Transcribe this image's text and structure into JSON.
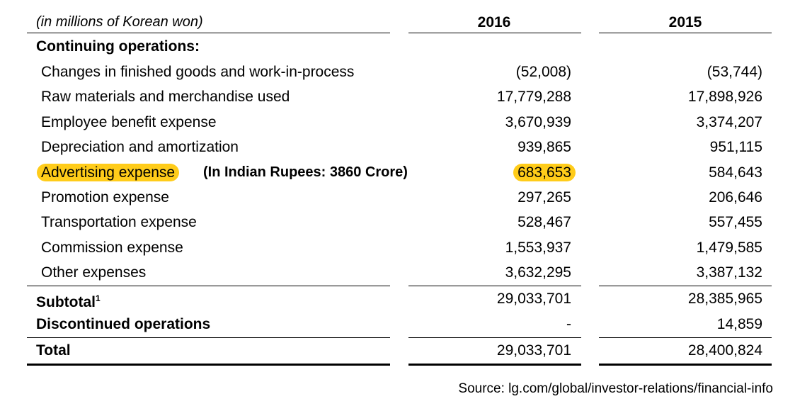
{
  "header": {
    "units": "(in millions of Korean won)",
    "col_2016": "2016",
    "col_2015": "2015"
  },
  "section_title": "Continuing operations:",
  "rows": [
    {
      "label": "Changes in finished goods and work-in-process",
      "v2016": "(52,008)",
      "v2015": "(53,744)"
    },
    {
      "label": "Raw materials and merchandise used",
      "v2016": "17,779,288",
      "v2015": "17,898,926"
    },
    {
      "label": "Employee benefit expense",
      "v2016": "3,670,939",
      "v2015": "3,374,207"
    },
    {
      "label": "Depreciation and amortization",
      "v2016": "939,865",
      "v2015": "951,115"
    },
    {
      "label": "Advertising expense",
      "note": "(In Indian Rupees: 3860 Crore)",
      "v2016": "683,653",
      "v2015": "584,643"
    },
    {
      "label": "Promotion expense",
      "v2016": "297,265",
      "v2015": "206,646"
    },
    {
      "label": "Transportation expense",
      "v2016": "528,467",
      "v2015": "557,455"
    },
    {
      "label": "Commission expense",
      "v2016": "1,553,937",
      "v2015": "1,479,585"
    },
    {
      "label": "Other expenses",
      "v2016": "3,632,295",
      "v2015": "3,387,132"
    }
  ],
  "subtotal": {
    "label": "Subtotal",
    "footnote": "1",
    "v2016": "29,033,701",
    "v2015": "28,385,965"
  },
  "discontinued": {
    "label": "Discontinued operations",
    "v2016": "-",
    "v2015": "14,859"
  },
  "total": {
    "label": "Total",
    "v2016": "29,033,701",
    "v2015": "28,400,824"
  },
  "source": "Source: lg.com/global/investor-relations/financial-info",
  "colors": {
    "highlight": "#ffcc1a"
  }
}
